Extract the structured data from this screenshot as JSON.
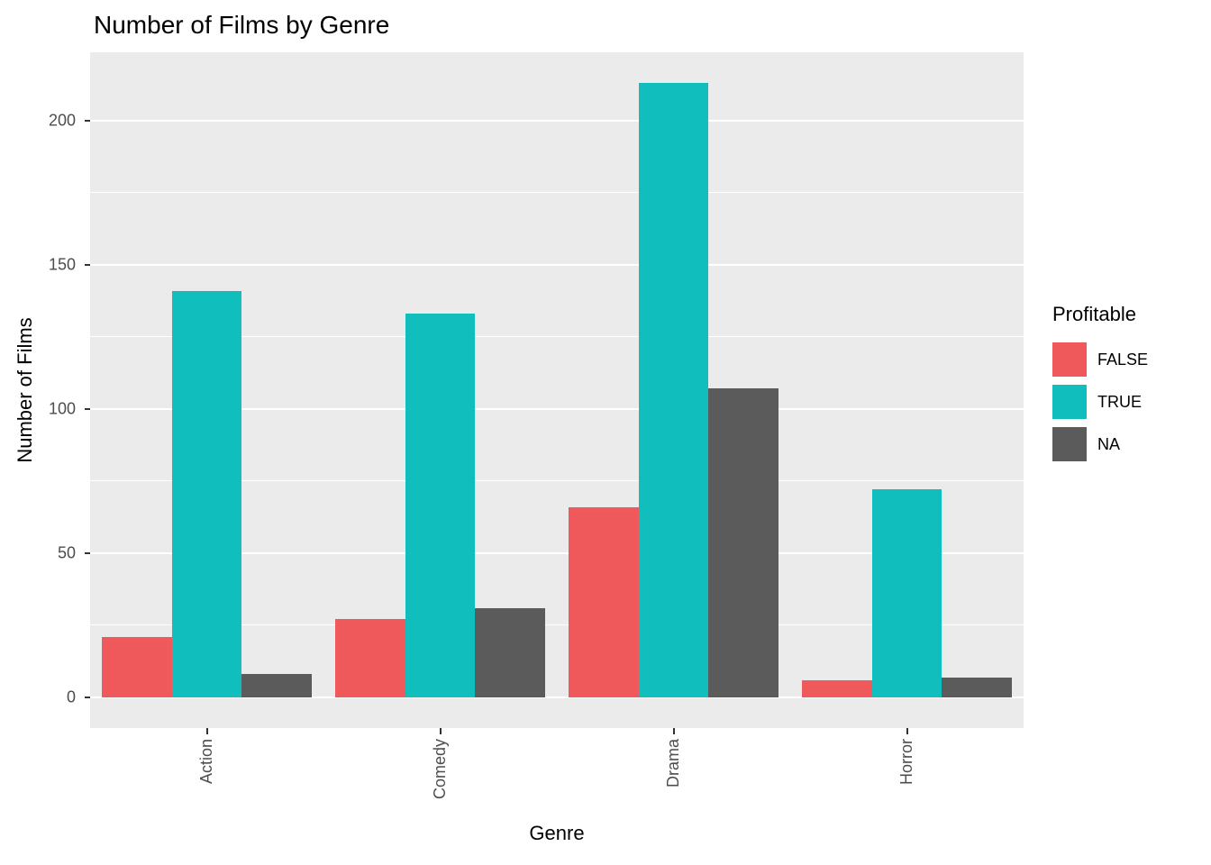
{
  "title": "Number of Films by Genre",
  "chart_data": {
    "type": "bar",
    "title": "Number of Films by Genre",
    "xlabel": "Genre",
    "ylabel": "Number of Films",
    "categories": [
      "Action",
      "Comedy",
      "Drama",
      "Horror"
    ],
    "series": [
      {
        "name": "FALSE",
        "color": "#F0595B",
        "values": [
          21,
          27,
          66,
          6
        ]
      },
      {
        "name": "TRUE",
        "color": "#10BEBE",
        "values": [
          141,
          133,
          213,
          72
        ]
      },
      {
        "name": "NA",
        "color": "#5B5B5B",
        "values": [
          8,
          31,
          107,
          7
        ]
      }
    ],
    "yticks": [
      0,
      50,
      100,
      150,
      200
    ],
    "minor_ticks": [
      25,
      75,
      125,
      175
    ],
    "ylim": [
      -10.65,
      223.65
    ],
    "legend_title": "Profitable",
    "legend_position": "right",
    "panel_bg": "#EBEBEB",
    "grid_color": "#FFFFFF",
    "bar_group_width": 0.9
  }
}
